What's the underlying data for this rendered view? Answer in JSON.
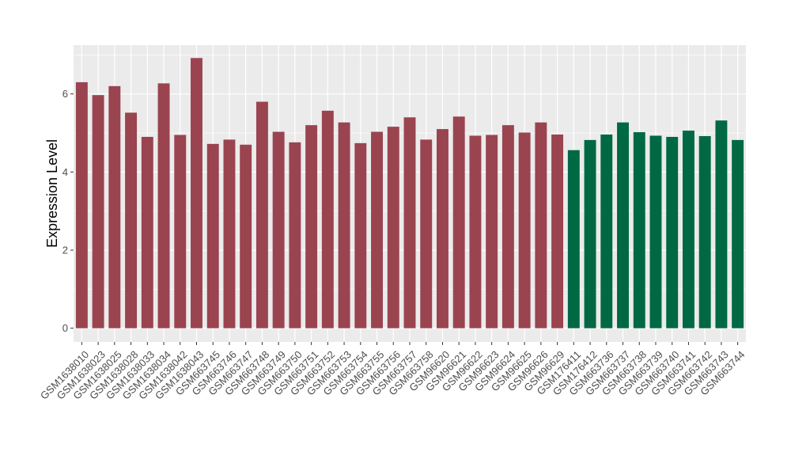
{
  "chart_data": {
    "type": "bar",
    "title": "",
    "xlabel": "",
    "ylabel": "Expression Level",
    "ylim": [
      -0.35,
      7.25
    ],
    "yticks": [
      0,
      2,
      4,
      6
    ],
    "grid": true,
    "legend": "none",
    "categories": [
      "GSM1638010",
      "GSM1638023",
      "GSM1638025",
      "GSM1638028",
      "GSM1638033",
      "GSM1638034",
      "GSM1638042",
      "GSM1638043",
      "GSM663745",
      "GSM663746",
      "GSM663747",
      "GSM663748",
      "GSM663749",
      "GSM663750",
      "GSM663751",
      "GSM663752",
      "GSM663753",
      "GSM663754",
      "GSM663755",
      "GSM663756",
      "GSM663757",
      "GSM663758",
      "GSM96620",
      "GSM96621",
      "GSM96622",
      "GSM96623",
      "GSM96624",
      "GSM96625",
      "GSM96626",
      "GSM96629",
      "GSM176411",
      "GSM176412",
      "GSM663736",
      "GSM663737",
      "GSM663738",
      "GSM663739",
      "GSM663740",
      "GSM663741",
      "GSM663742",
      "GSM663743",
      "GSM663744"
    ],
    "values": [
      6.3,
      5.97,
      6.2,
      5.52,
      4.9,
      6.27,
      4.95,
      6.92,
      4.72,
      4.83,
      4.7,
      5.8,
      5.03,
      4.76,
      5.2,
      5.57,
      5.27,
      4.74,
      5.03,
      5.16,
      5.4,
      4.83,
      5.1,
      5.42,
      4.93,
      4.95,
      5.2,
      5.01,
      5.27,
      4.96,
      4.56,
      4.82,
      4.96,
      5.27,
      5.02,
      4.93,
      4.9,
      5.06,
      4.92,
      5.32,
      4.82
    ],
    "bar_colors": [
      "#9a4450",
      "#9a4450",
      "#9a4450",
      "#9a4450",
      "#9a4450",
      "#9a4450",
      "#9a4450",
      "#9a4450",
      "#9a4450",
      "#9a4450",
      "#9a4450",
      "#9a4450",
      "#9a4450",
      "#9a4450",
      "#9a4450",
      "#9a4450",
      "#9a4450",
      "#9a4450",
      "#9a4450",
      "#9a4450",
      "#9a4450",
      "#9a4450",
      "#9a4450",
      "#9a4450",
      "#9a4450",
      "#9a4450",
      "#9a4450",
      "#9a4450",
      "#9a4450",
      "#9a4450",
      "#006944",
      "#006944",
      "#006944",
      "#006944",
      "#006944",
      "#006944",
      "#006944",
      "#006944",
      "#006944",
      "#006944",
      "#006944"
    ],
    "panel_background": "#ebebeb",
    "grid_color": "#ffffff"
  }
}
